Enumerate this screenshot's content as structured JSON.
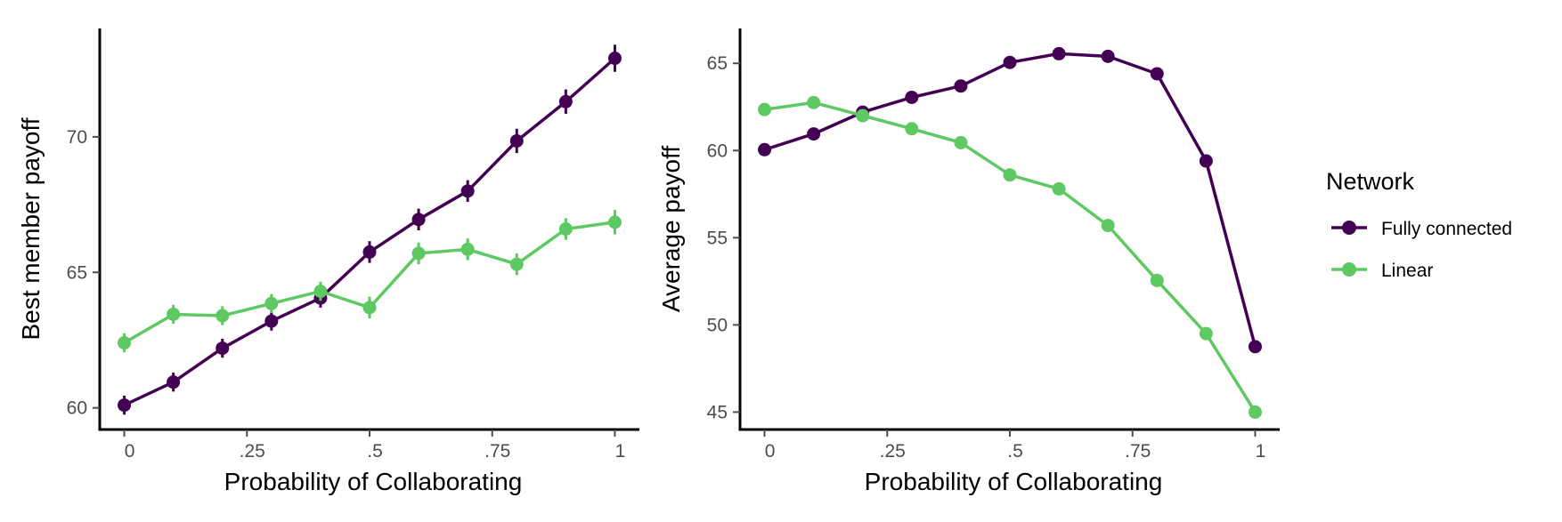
{
  "colors": {
    "fully_connected": "#440154",
    "linear": "#5ec962",
    "axis": "#000000",
    "tick_text": "#4d4d4d"
  },
  "legend": {
    "title": "Network",
    "entries": [
      {
        "key": "fully_connected",
        "label": "Fully connected"
      },
      {
        "key": "linear",
        "label": "Linear"
      }
    ]
  },
  "chart_data": [
    {
      "type": "line",
      "xlabel": "Probability of Collaborating",
      "ylabel": "Best member payoff",
      "x": [
        0,
        0.1,
        0.2,
        0.3,
        0.4,
        0.5,
        0.6,
        0.7,
        0.8,
        0.9,
        1.0
      ],
      "xlim": [
        -0.05,
        1.05
      ],
      "ylim": [
        59.2,
        74.0
      ],
      "xticks": [
        0,
        0.25,
        0.5,
        0.75,
        1
      ],
      "xtick_labels": [
        "0",
        ".25",
        ".5",
        ".75",
        "1"
      ],
      "yticks": [
        60,
        65,
        70
      ],
      "ytick_labels": [
        "60",
        "65",
        "70"
      ],
      "series": [
        {
          "name": "Fully connected",
          "key": "fully_connected",
          "values": [
            60.1,
            60.95,
            62.2,
            63.2,
            64.05,
            65.75,
            66.95,
            68.0,
            69.85,
            71.3,
            72.9
          ],
          "errors": [
            0.35,
            0.35,
            0.35,
            0.35,
            0.35,
            0.4,
            0.4,
            0.4,
            0.45,
            0.45,
            0.5
          ]
        },
        {
          "name": "Linear",
          "key": "linear",
          "values": [
            62.4,
            63.45,
            63.4,
            63.85,
            64.3,
            63.7,
            65.7,
            65.85,
            65.3,
            66.6,
            66.85
          ],
          "errors": [
            0.35,
            0.35,
            0.35,
            0.35,
            0.35,
            0.4,
            0.4,
            0.4,
            0.4,
            0.4,
            0.45
          ]
        }
      ]
    },
    {
      "type": "line",
      "xlabel": "Probability of Collaborating",
      "ylabel": "Average payoff",
      "x": [
        0,
        0.1,
        0.2,
        0.3,
        0.4,
        0.5,
        0.6,
        0.7,
        0.8,
        0.9,
        1.0
      ],
      "xlim": [
        -0.05,
        1.05
      ],
      "ylim": [
        44.0,
        67.0
      ],
      "xticks": [
        0,
        0.25,
        0.5,
        0.75,
        1
      ],
      "xtick_labels": [
        "0",
        ".25",
        ".5",
        ".75",
        "1"
      ],
      "yticks": [
        45,
        50,
        55,
        60,
        65
      ],
      "ytick_labels": [
        "45",
        "50",
        "55",
        "60",
        "65"
      ],
      "series": [
        {
          "name": "Fully connected",
          "key": "fully_connected",
          "values": [
            60.05,
            60.95,
            62.2,
            63.05,
            63.7,
            65.05,
            65.55,
            65.4,
            64.4,
            59.4,
            48.75
          ],
          "errors": []
        },
        {
          "name": "Linear",
          "key": "linear",
          "values": [
            62.35,
            62.75,
            62.0,
            61.25,
            60.45,
            58.6,
            57.8,
            55.7,
            52.55,
            49.5,
            45.0
          ],
          "errors": []
        }
      ]
    }
  ]
}
